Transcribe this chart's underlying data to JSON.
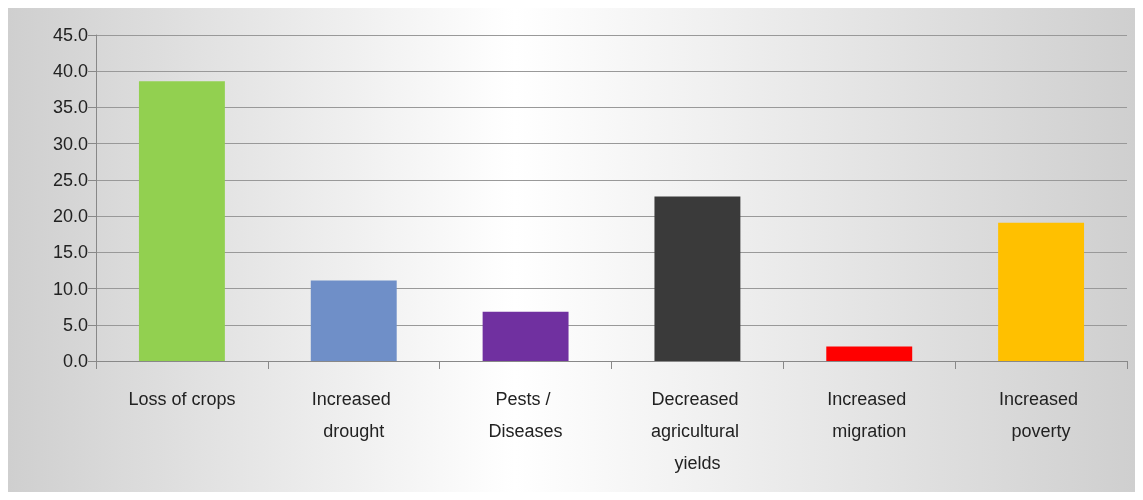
{
  "chart_data": {
    "type": "bar",
    "categories": [
      "Loss of crops",
      "Increased drought",
      "Pests / Diseases",
      "Decreased agricultural yields",
      "Increased migration",
      "Increased poverty"
    ],
    "values": [
      38.6,
      11.1,
      6.8,
      22.7,
      2.0,
      19.1
    ],
    "colors": [
      "#92d050",
      "#6f8fc8",
      "#7030a0",
      "#3a3a3a",
      "#ff0000",
      "#ffc000"
    ],
    "ylim": [
      0,
      45
    ],
    "yticks": [
      {
        "value": 0,
        "label": "0.0"
      },
      {
        "value": 5,
        "label": "5.0"
      },
      {
        "value": 10,
        "label": "10.0"
      },
      {
        "value": 15,
        "label": "15.0"
      },
      {
        "value": 20,
        "label": "20.0"
      },
      {
        "value": 25,
        "label": "25.0"
      },
      {
        "value": 30,
        "label": "30.0"
      },
      {
        "value": 35,
        "label": "35.0"
      },
      {
        "value": 40,
        "label": "40.0"
      },
      {
        "value": 45,
        "label": "45.0"
      }
    ],
    "grid": "y"
  }
}
